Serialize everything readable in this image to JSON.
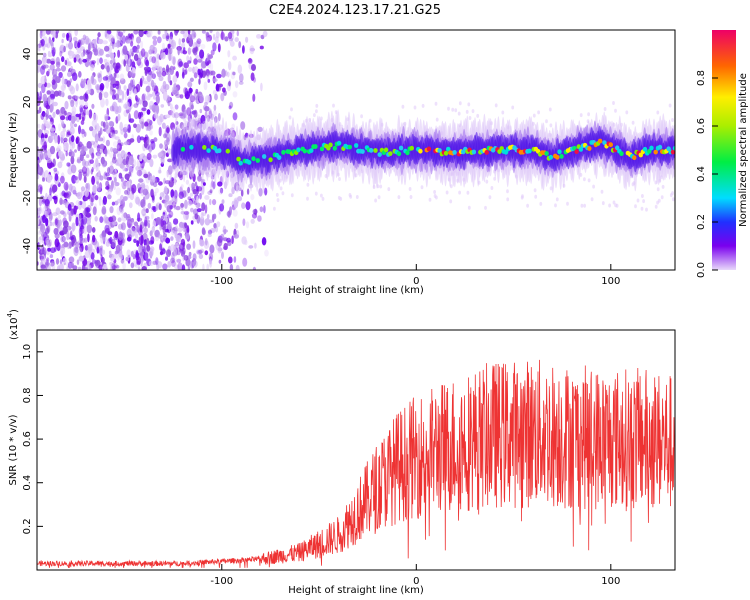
{
  "title": "C2E4.2024.123.17.21.G25",
  "chart_data": [
    {
      "type": "heatmap",
      "xlabel": "Height of straight line (km)",
      "ylabel": "Frequency (Hz)",
      "xlim": [
        -195,
        133
      ],
      "ylim": [
        -50,
        50
      ],
      "xticks": [
        -100,
        0,
        100
      ],
      "yticks": [
        -40,
        -20,
        0,
        20,
        40
      ],
      "colorbar": {
        "label": "Normalized spectral amplitude",
        "range": [
          0,
          1
        ],
        "ticks": [
          "0.0",
          "0.2",
          "0.4",
          "0.6",
          "0.8"
        ]
      },
      "description_points": {
        "x": [
          -120,
          -100,
          -90,
          -80,
          -60,
          -40,
          -20,
          0,
          20,
          40,
          60,
          70,
          80,
          95,
          110,
          120,
          130
        ],
        "y": [
          0,
          0,
          -5,
          -4,
          0,
          2,
          -1,
          0,
          -1,
          0,
          0,
          -3,
          0,
          3,
          -3,
          0,
          0
        ]
      }
    },
    {
      "type": "line",
      "xlabel": "Height of straight line (km)",
      "ylabel": "SNR (10 * v/v)",
      "yscale_label": "(x10",
      "yscale_exp": "4",
      "yscale_close": ")",
      "xlim": [
        -195,
        133
      ],
      "ylim": [
        0,
        1.1
      ],
      "xticks": [
        -100,
        0,
        100
      ],
      "yticks": [
        0.2,
        0.4,
        0.6,
        0.8,
        1.0
      ],
      "color": "#ee3333",
      "envelope": {
        "x": [
          -195,
          -120,
          -100,
          -80,
          -60,
          -40,
          -30,
          -20,
          -10,
          0,
          20,
          40,
          60,
          80,
          100,
          120,
          133
        ],
        "y": [
          0.03,
          0.03,
          0.04,
          0.05,
          0.08,
          0.16,
          0.27,
          0.38,
          0.47,
          0.52,
          0.58,
          0.62,
          0.63,
          0.61,
          0.6,
          0.6,
          0.58
        ]
      }
    }
  ]
}
